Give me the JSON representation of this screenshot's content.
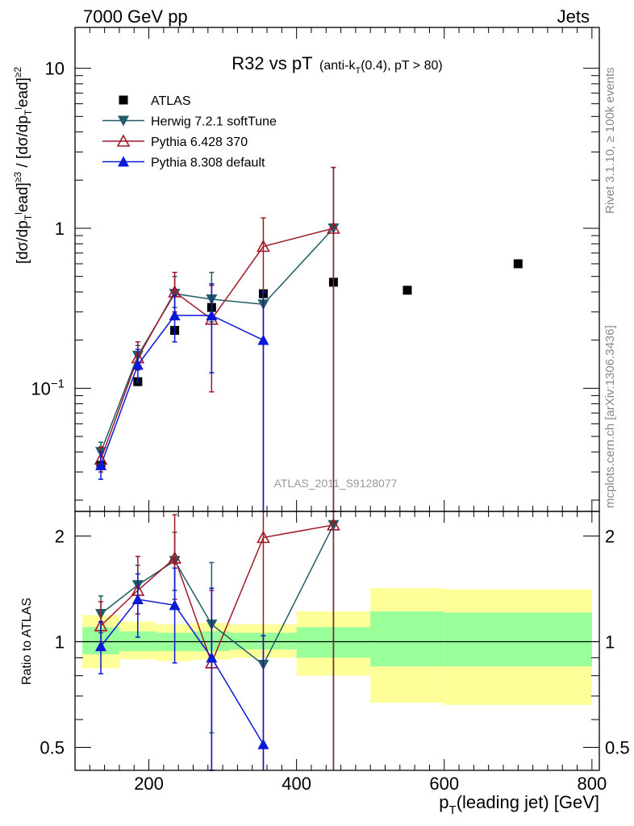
{
  "header": {
    "left": "7000 GeV pp",
    "right": "Jets"
  },
  "side_text": {
    "rivet": "Rivet 3.1.10, ≥ 100k events",
    "mcplots": "mcplots.cern.ch [arXiv:1306.3436]"
  },
  "watermark": "ATLAS_2011_S9128077",
  "chart_data": [
    {
      "type": "scatter",
      "panel": "main",
      "title": "R32 vs pT",
      "title_sub": "(anti-k",
      "title_sub_k": "T",
      "title_sub_rest": "(0.4), pT > 80)",
      "ylabel": "[dσ/dpᵀˡead]≥³ / [dσ/dpᵀˡead]≥²",
      "yscale": "log",
      "ylim": [
        0.017,
        18
      ],
      "xlim": [
        100,
        810
      ],
      "ytick_labels": [
        "10",
        "1",
        "10⁻¹"
      ],
      "legend_position": "top-left",
      "series": [
        {
          "name": "ATLAS",
          "color": "#000000",
          "marker": "square",
          "x": [
            135,
            185,
            235,
            285,
            355,
            450,
            550,
            700
          ],
          "y": [
            0.033,
            0.11,
            0.23,
            0.32,
            0.39,
            0.46,
            0.41,
            0.6
          ],
          "ylo": [
            0.033,
            0.11,
            0.23,
            0.32,
            0.39,
            0.46,
            0.41,
            0.6
          ],
          "yhi": [
            0.033,
            0.11,
            0.23,
            0.32,
            0.39,
            0.46,
            0.41,
            0.6
          ]
        },
        {
          "name": "Herwig 7.2.1 softTune",
          "color": "#1f5c66",
          "marker": "triangle-down",
          "x": [
            135,
            185,
            235,
            285,
            355,
            450
          ],
          "y": [
            0.04,
            0.16,
            0.39,
            0.36,
            0.335,
            1.0
          ],
          "ylo": [
            0.034,
            0.14,
            0.32,
            0.26,
            0.001,
            0.001
          ],
          "yhi": [
            0.046,
            0.185,
            0.5,
            0.53,
            0.001,
            2.4
          ]
        },
        {
          "name": "Pythia 6.428 370",
          "color": "#a01828",
          "marker": "triangle-open",
          "x": [
            135,
            185,
            235,
            285,
            355,
            450
          ],
          "y": [
            0.036,
            0.155,
            0.4,
            0.27,
            0.77,
            1.0
          ],
          "ylo": [
            0.03,
            0.13,
            0.3,
            0.095,
            0.001,
            0.001
          ],
          "yhi": [
            0.043,
            0.195,
            0.53,
            0.44,
            1.16,
            2.4
          ]
        },
        {
          "name": "Pythia 8.308 default",
          "color": "#0a18d8",
          "marker": "triangle-up",
          "x": [
            135,
            185,
            235,
            285,
            355
          ],
          "y": [
            0.033,
            0.14,
            0.285,
            0.285,
            0.2
          ],
          "ylo": [
            0.027,
            0.11,
            0.195,
            0.125,
            0.001
          ],
          "yhi": [
            0.04,
            0.175,
            0.38,
            0.45,
            0.4
          ]
        }
      ]
    },
    {
      "type": "scatter",
      "panel": "ratio",
      "ylabel": "Ratio to ATLAS",
      "xlabel": "p",
      "xlabel_sub": "T",
      "xlabel_rest": "(leading jet) [GeV]",
      "yscale": "log",
      "ylim": [
        0.43,
        2.35
      ],
      "xlim": [
        100,
        810
      ],
      "xtick_labels": [
        "200",
        "400",
        "600",
        "800"
      ],
      "ytick_labels": [
        "2",
        "1",
        "0.5"
      ],
      "bands": [
        {
          "x0": 110,
          "x1": 160,
          "outer": [
            0.84,
            1.19
          ],
          "inner": [
            0.92,
            1.1
          ]
        },
        {
          "x0": 160,
          "x1": 210,
          "outer": [
            0.89,
            1.14
          ],
          "inner": [
            0.94,
            1.07
          ]
        },
        {
          "x0": 210,
          "x1": 260,
          "outer": [
            0.88,
            1.12
          ],
          "inner": [
            0.94,
            1.06
          ]
        },
        {
          "x0": 260,
          "x1": 310,
          "outer": [
            0.89,
            1.13
          ],
          "inner": [
            0.94,
            1.07
          ]
        },
        {
          "x0": 310,
          "x1": 400,
          "outer": [
            0.9,
            1.12
          ],
          "inner": [
            0.95,
            1.06
          ]
        },
        {
          "x0": 400,
          "x1": 500,
          "outer": [
            0.8,
            1.22
          ],
          "inner": [
            0.9,
            1.1
          ]
        },
        {
          "x0": 500,
          "x1": 600,
          "outer": [
            0.67,
            1.42
          ],
          "inner": [
            0.85,
            1.22
          ]
        },
        {
          "x0": 600,
          "x1": 800,
          "outer": [
            0.66,
            1.41
          ],
          "inner": [
            0.85,
            1.21
          ]
        }
      ],
      "series": [
        {
          "name": "Herwig 7.2.1 softTune",
          "color": "#1f5c66",
          "marker": "triangle-down",
          "x": [
            135,
            185,
            235,
            285,
            355,
            450
          ],
          "y": [
            1.2,
            1.45,
            1.7,
            1.12,
            0.86,
            2.15
          ],
          "ylo": [
            1.06,
            1.3,
            1.4,
            0.55,
            0.001,
            0.001
          ],
          "yhi": [
            1.35,
            1.65,
            2.05,
            1.68,
            0.001,
            2.5
          ]
        },
        {
          "name": "Pythia 6.428 370",
          "color": "#a01828",
          "marker": "triangle-open",
          "x": [
            135,
            185,
            235,
            285,
            355,
            450
          ],
          "y": [
            1.11,
            1.4,
            1.73,
            0.87,
            1.98,
            2.15
          ],
          "ylo": [
            0.95,
            1.2,
            1.32,
            0.36,
            0.001,
            0.001
          ],
          "yhi": [
            1.3,
            1.75,
            2.3,
            1.4,
            2.5,
            2.5
          ]
        },
        {
          "name": "Pythia 8.308 default",
          "color": "#0a18d8",
          "marker": "triangle-up",
          "x": [
            135,
            185,
            235,
            285,
            355
          ],
          "y": [
            0.97,
            1.32,
            1.27,
            0.9,
            0.51
          ],
          "ylo": [
            0.81,
            1.03,
            0.87,
            0.37,
            0.001
          ],
          "yhi": [
            1.14,
            1.56,
            1.62,
            1.42,
            1.04
          ]
        }
      ]
    }
  ]
}
